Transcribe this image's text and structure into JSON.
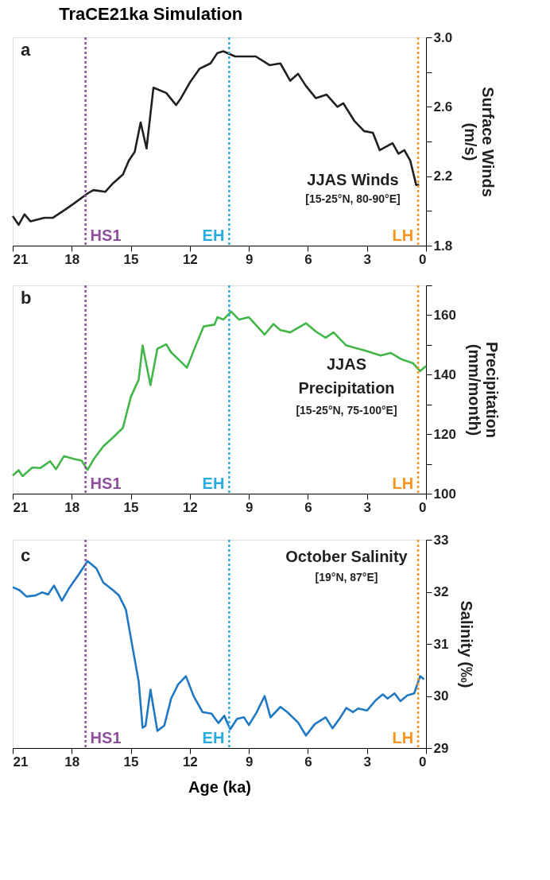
{
  "chart_data": [
    {
      "type": "line",
      "title": "TraCE21ka Simulation",
      "ylabel": "Surface Winds (m/s)",
      "annotations": [
        "a",
        "JJAS Winds",
        "[15-25°N, 80-90°E]"
      ],
      "x": [
        21,
        20.7,
        20.4,
        20.1,
        19.4,
        18.97,
        18.3,
        17.8,
        17.2,
        16.9,
        16.3,
        15.9,
        15.4,
        15.1,
        14.8,
        14.5,
        14.2,
        13.85,
        13.2,
        12.7,
        12.45,
        12.0,
        11.5,
        10.95,
        10.6,
        10.3,
        9.7,
        8.65,
        7.95,
        7.4,
        6.9,
        6.5,
        6.1,
        5.6,
        5.05,
        4.5,
        4.2,
        3.65,
        3.15,
        2.7,
        2.35,
        1.7,
        1.4,
        1.1,
        0.8,
        0.5,
        0.35
      ],
      "series": [
        {
          "color": "#231f20",
          "values": [
            1.97,
            1.92,
            1.98,
            1.94,
            1.96,
            1.96,
            2.01,
            2.05,
            2.1,
            2.12,
            2.11,
            2.16,
            2.21,
            2.29,
            2.34,
            2.51,
            2.36,
            2.71,
            2.68,
            2.61,
            2.65,
            2.74,
            2.82,
            2.85,
            2.91,
            2.92,
            2.89,
            2.89,
            2.84,
            2.85,
            2.75,
            2.79,
            2.72,
            2.65,
            2.67,
            2.6,
            2.62,
            2.52,
            2.46,
            2.45,
            2.35,
            2.39,
            2.33,
            2.35,
            2.29,
            2.15,
            2.15
          ]
        }
      ],
      "xlim": [
        21,
        0
      ],
      "xticks": [
        21,
        18,
        15,
        12,
        9,
        6,
        3,
        0
      ],
      "ylim": [
        1.8,
        3.0
      ],
      "yticks": [
        {
          "value": 1.8,
          "label": "1.8"
        },
        {
          "value": 2.0,
          "label": null
        },
        {
          "value": 2.2,
          "label": "2.2"
        },
        {
          "value": 2.4,
          "label": null
        },
        {
          "value": 2.6,
          "label": "2.6"
        },
        {
          "value": 2.8,
          "label": null
        },
        {
          "value": 3.0,
          "label": "3.0"
        }
      ],
      "ref_lines": [
        {
          "axis": "x",
          "value": 17.3,
          "label": "HS1",
          "color": "#8e4f9f",
          "line_style": "dotted"
        },
        {
          "axis": "x",
          "value": 10,
          "label": "EH",
          "color": "#29abe2",
          "line_style": "dotted"
        },
        {
          "axis": "x",
          "value": 0.4,
          "label": "LH",
          "color": "#f7941d",
          "line_style": "dotted"
        }
      ],
      "grid": false,
      "line_style": "solid"
    },
    {
      "type": "line",
      "ylabel": "Precipitation (mm/month)",
      "annotations": [
        "b",
        "JJAS",
        "Precipitation",
        "[15-25°N, 75-100°E]"
      ],
      "x": [
        21,
        20.7,
        20.5,
        20.0,
        19.6,
        19.1,
        18.8,
        18.4,
        17.9,
        17.5,
        17.2,
        16.85,
        16.4,
        15.9,
        15.4,
        15.0,
        14.6,
        14.4,
        14.0,
        13.65,
        13.2,
        12.95,
        12.4,
        12.15,
        11.7,
        11.3,
        10.75,
        10.6,
        10.3,
        9.9,
        9.5,
        9.0,
        8.2,
        7.75,
        7.4,
        6.9,
        6.1,
        5.6,
        5.1,
        4.7,
        4.05,
        3.55,
        3.1,
        2.3,
        1.8,
        1.25,
        0.65,
        0.3,
        0.0
      ],
      "series": [
        {
          "color": "#43b649",
          "values": [
            106.1,
            107.9,
            105.9,
            108.8,
            108.6,
            110.9,
            108.2,
            112.6,
            111.7,
            111.1,
            108.0,
            111.9,
            115.9,
            118.9,
            122.1,
            132.5,
            138.3,
            149.8,
            136.5,
            148.7,
            150.2,
            147.5,
            144.0,
            142.3,
            149.8,
            156.2,
            156.8,
            159.3,
            158.5,
            161.2,
            158.5,
            159.3,
            153.5,
            157.0,
            155.0,
            154.2,
            157.3,
            154.5,
            152.4,
            154.2,
            149.8,
            148.9,
            148.1,
            146.4,
            147.3,
            145.2,
            143.8,
            141.2,
            142.9
          ]
        }
      ],
      "xlim": [
        21,
        0
      ],
      "xticks": [
        21,
        18,
        15,
        12,
        9,
        6,
        3,
        0
      ],
      "ylim": [
        100,
        170
      ],
      "yticks": [
        100,
        {
          "value": 110,
          "label": null
        },
        120,
        {
          "value": 130,
          "label": null
        },
        140,
        {
          "value": 150,
          "label": null
        },
        160,
        {
          "value": 170,
          "label": null
        }
      ],
      "ref_lines": [
        {
          "axis": "x",
          "value": 17.3,
          "label": "HS1",
          "color": "#8e4f9f",
          "line_style": "dotted"
        },
        {
          "axis": "x",
          "value": 10,
          "label": "EH",
          "color": "#29abe2",
          "line_style": "dotted"
        },
        {
          "axis": "x",
          "value": 0.4,
          "label": "LH",
          "color": "#f7941d",
          "line_style": "dotted"
        }
      ],
      "grid": false,
      "line_style": "solid"
    },
    {
      "type": "line",
      "xlabel": "Age (ka)",
      "ylabel": "Salinity (‰)",
      "annotations": [
        "c",
        "October Salinity",
        "[19°N, 87°E]"
      ],
      "x": [
        21,
        20.65,
        20.3,
        19.85,
        19.5,
        19.2,
        18.9,
        18.5,
        18.15,
        17.6,
        17.2,
        16.75,
        16.4,
        15.9,
        15.6,
        15.25,
        14.9,
        14.6,
        14.4,
        14.25,
        14.0,
        13.65,
        13.3,
        12.95,
        12.6,
        12.2,
        11.8,
        11.35,
        10.9,
        10.55,
        10.25,
        9.95,
        9.6,
        9.25,
        9.0,
        8.6,
        8.2,
        7.9,
        7.4,
        7.05,
        6.5,
        6.1,
        5.65,
        5.1,
        4.75,
        4.4,
        4.05,
        3.7,
        3.45,
        3.0,
        2.55,
        2.2,
        1.95,
        1.6,
        1.3,
        0.95,
        0.6,
        0.3,
        0.1
      ],
      "series": [
        {
          "color": "#1f78c1",
          "values": [
            32.09,
            32.03,
            31.91,
            31.93,
            31.99,
            31.95,
            32.12,
            31.83,
            32.06,
            32.36,
            32.59,
            32.45,
            32.18,
            32.03,
            31.93,
            31.66,
            30.91,
            30.28,
            29.39,
            29.43,
            30.12,
            29.33,
            29.43,
            29.95,
            30.22,
            30.38,
            29.99,
            29.69,
            29.66,
            29.48,
            29.62,
            29.36,
            29.56,
            29.59,
            29.44,
            29.69,
            30.0,
            29.59,
            29.79,
            29.69,
            29.49,
            29.24,
            29.46,
            29.59,
            29.38,
            29.56,
            29.77,
            29.69,
            29.76,
            29.72,
            29.92,
            30.03,
            29.95,
            30.05,
            29.9,
            30.01,
            30.05,
            30.38,
            30.32
          ]
        }
      ],
      "xlim": [
        21,
        0
      ],
      "xticks": [
        21,
        18,
        15,
        12,
        9,
        6,
        3,
        0
      ],
      "ylim": [
        29,
        33
      ],
      "yticks": [
        29,
        30,
        31,
        32,
        33
      ],
      "ref_lines": [
        {
          "axis": "x",
          "value": 17.3,
          "label": "HS1",
          "color": "#8e4f9f",
          "line_style": "dotted"
        },
        {
          "axis": "x",
          "value": 10,
          "label": "EH",
          "color": "#29abe2",
          "line_style": "dotted"
        },
        {
          "axis": "x",
          "value": 0.4,
          "label": "LH",
          "color": "#f7941d",
          "line_style": "dotted"
        }
      ],
      "grid": false,
      "line_style": "solid"
    }
  ]
}
